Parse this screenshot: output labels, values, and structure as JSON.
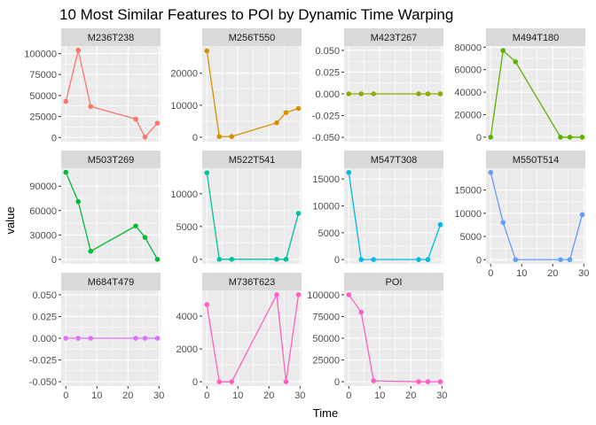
{
  "chart_data": {
    "type": "line",
    "title": "10 Most Similar Features to POI by Dynamic Time Warping",
    "xlabel": "Time",
    "ylabel": "value",
    "x": [
      0,
      4,
      8,
      22.5,
      25.5,
      29.5
    ],
    "x_ticks": [
      "0",
      "10",
      "20",
      "30"
    ],
    "xlim": [
      -1.5,
      30.5
    ],
    "grid": true,
    "legend": "none",
    "panels": [
      {
        "name": "M236T238",
        "color": "#F8766D",
        "values": [
          43000,
          104000,
          37000,
          22000,
          500,
          17000
        ],
        "y_ticks": [
          0,
          25000,
          50000,
          75000,
          100000
        ],
        "y_tick_labels": [
          "0",
          "25000",
          "50000",
          "75000",
          "100000"
        ],
        "ylim": [
          -5000,
          109000
        ]
      },
      {
        "name": "M256T550",
        "color": "#D39200",
        "values": [
          27000,
          200,
          200,
          4500,
          7700,
          9000
        ],
        "y_ticks": [
          0,
          10000,
          20000
        ],
        "y_tick_labels": [
          "0",
          "10000",
          "20000"
        ],
        "ylim": [
          -1400,
          28500
        ]
      },
      {
        "name": "M423T267",
        "color": "#93AA00",
        "values": [
          0,
          0,
          0,
          0,
          0,
          0
        ],
        "y_ticks": [
          -0.05,
          -0.025,
          0,
          0.025,
          0.05
        ],
        "y_tick_labels": [
          "-0.050",
          "-0.025",
          "0.000",
          "0.025",
          "0.050"
        ],
        "ylim": [
          -0.055,
          0.055
        ]
      },
      {
        "name": "M494T180",
        "color": "#5BB300",
        "values": [
          0,
          77000,
          67000,
          0,
          0,
          0
        ],
        "y_ticks": [
          0,
          20000,
          40000,
          60000,
          80000
        ],
        "y_tick_labels": [
          "0",
          "20000",
          "40000",
          "60000",
          "80000"
        ],
        "ylim": [
          -4000,
          81000
        ]
      },
      {
        "name": "M503T269",
        "color": "#00BA38",
        "values": [
          107000,
          71000,
          10000,
          41000,
          27000,
          0
        ],
        "y_ticks": [
          0,
          30000,
          60000,
          90000
        ],
        "y_tick_labels": [
          "0",
          "30000",
          "60000",
          "90000"
        ],
        "ylim": [
          -5500,
          112000
        ]
      },
      {
        "name": "M522T541",
        "color": "#00C19F",
        "values": [
          13200,
          0,
          0,
          0,
          0,
          7000
        ],
        "y_ticks": [
          0,
          5000,
          10000
        ],
        "y_tick_labels": [
          "0",
          "5000",
          "10000"
        ],
        "ylim": [
          -700,
          13900
        ]
      },
      {
        "name": "M547T308",
        "color": "#00B9E3",
        "values": [
          16200,
          0,
          0,
          0,
          0,
          6500
        ],
        "y_ticks": [
          0,
          5000,
          10000,
          15000
        ],
        "y_tick_labels": [
          "0",
          "5000",
          "10000",
          "15000"
        ],
        "ylim": [
          -800,
          17000
        ]
      },
      {
        "name": "M550T514",
        "color": "#619CFF",
        "values": [
          18800,
          8000,
          0,
          0,
          0,
          9700
        ],
        "y_ticks": [
          0,
          5000,
          10000,
          15000
        ],
        "y_tick_labels": [
          "0",
          "5000",
          "10000",
          "15000"
        ],
        "ylim": [
          -900,
          19700
        ]
      },
      {
        "name": "M684T479",
        "color": "#DB72FB",
        "values": [
          0,
          0,
          0,
          0,
          0,
          0
        ],
        "y_ticks": [
          -0.05,
          -0.025,
          0,
          0.025,
          0.05
        ],
        "y_tick_labels": [
          "-0.050",
          "-0.025",
          "0.000",
          "0.025",
          "0.050"
        ],
        "ylim": [
          -0.055,
          0.055
        ]
      },
      {
        "name": "M736T623",
        "color": "#FF61C3",
        "values": [
          4700,
          0,
          0,
          5300,
          0,
          5300
        ],
        "y_ticks": [
          0,
          2000,
          4000
        ],
        "y_tick_labels": [
          "0",
          "2000",
          "4000"
        ],
        "ylim": [
          -260,
          5560
        ]
      },
      {
        "name": "POI",
        "color": "#FF61C3",
        "values": [
          100000,
          80000,
          1000,
          0,
          0,
          0
        ],
        "y_ticks": [
          0,
          25000,
          50000,
          75000,
          100000
        ],
        "y_tick_labels": [
          "0",
          "25000",
          "50000",
          "75000",
          "100000"
        ],
        "ylim": [
          -5000,
          105000
        ]
      }
    ]
  }
}
